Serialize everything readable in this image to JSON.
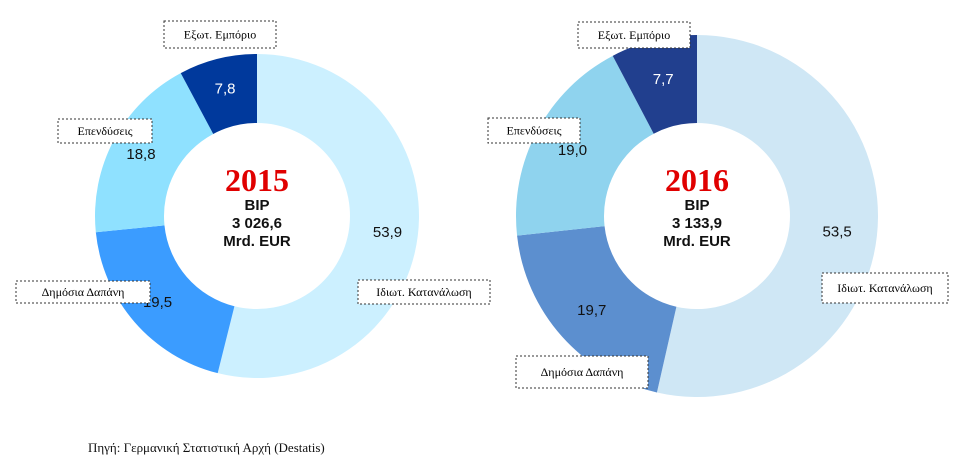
{
  "chart_data": [
    {
      "type": "pie",
      "title": "2015",
      "center_label": "BIP",
      "center_value": "3 026,6",
      "center_unit": "Mrd. EUR",
      "categories": [
        "Ιδιωτ. Κατανάλωση",
        "Δημόσια Δαπάνη",
        "Επενδύσεις",
        "Εξωτ. Εμπόριο"
      ],
      "values": [
        53.9,
        19.5,
        18.8,
        7.8
      ],
      "value_labels": [
        "53,9",
        "19,5",
        "18,8",
        "7,8"
      ],
      "colors": [
        "#ccf0ff",
        "#3b9cff",
        "#8fe1ff",
        "#00399c"
      ],
      "value_label_colors": [
        "#111111",
        "#111111",
        "#111111",
        "#ffffff"
      ]
    },
    {
      "type": "pie",
      "title": "2016",
      "center_label": "BIP",
      "center_value": "3 133,9",
      "center_unit": "Mrd. EUR",
      "categories": [
        "Ιδιωτ. Κατανάλωση",
        "Δημόσια Δαπάνη",
        "Επενδύσεις",
        "Εξωτ. Εμπόριο"
      ],
      "values": [
        53.5,
        19.7,
        19.0,
        7.7
      ],
      "value_labels": [
        "53,5",
        "19,7",
        "19,0",
        "7,7"
      ],
      "colors": [
        "#cfe7f5",
        "#5c8fcf",
        "#8fd3ee",
        "#213f8e"
      ],
      "value_label_colors": [
        "#111111",
        "#111111",
        "#111111",
        "#ffffff"
      ]
    }
  ],
  "source": "Πηγή: Γερμανική Στατιστική Αρχή (Destatis)"
}
